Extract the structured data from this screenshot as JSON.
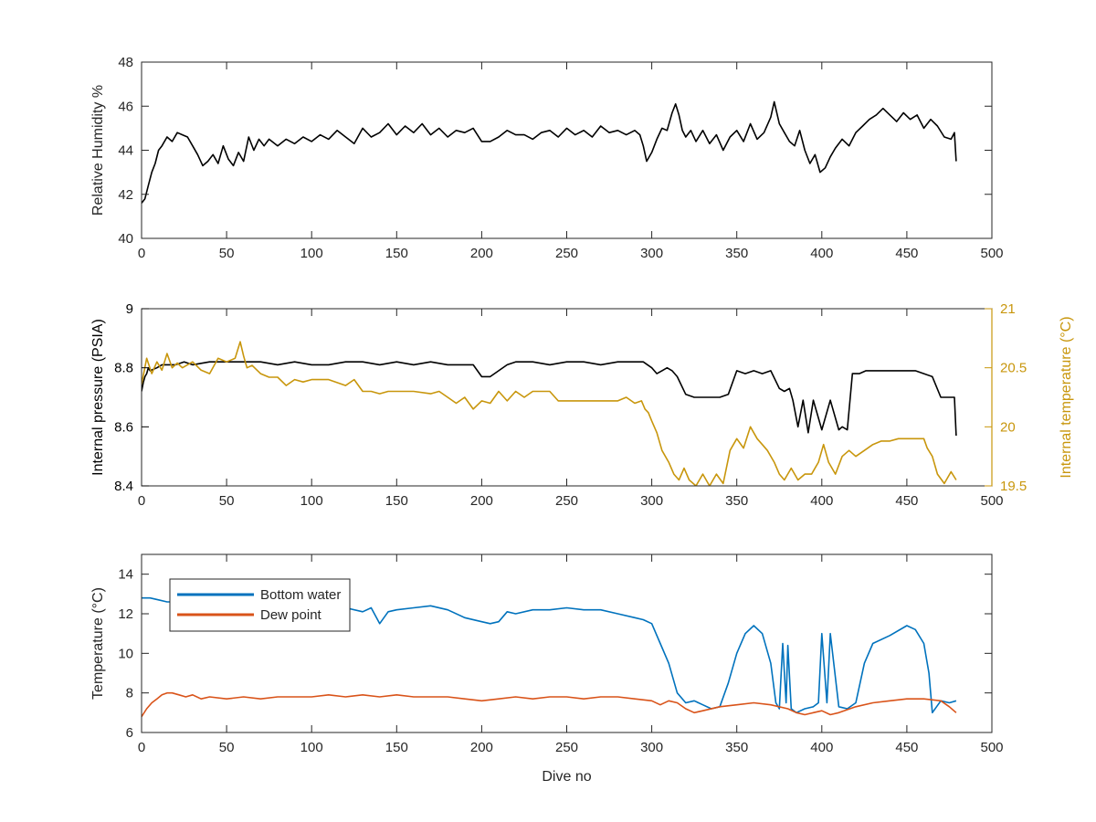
{
  "colors": {
    "black": "#000000",
    "axis": "#262626",
    "temperature": "#C8960C",
    "bottom_water": "#0072BD",
    "dew_point": "#D95319"
  },
  "chart_data": [
    {
      "type": "line",
      "xlabel": "",
      "ylabel": "Relative Humidity %",
      "xlim": [
        0,
        500
      ],
      "ylim": [
        40,
        48
      ],
      "xticks": [
        "0",
        "50",
        "100",
        "150",
        "200",
        "250",
        "300",
        "350",
        "400",
        "450",
        "500"
      ],
      "yticks": [
        "40",
        "42",
        "44",
        "46",
        "48"
      ],
      "grid": false,
      "series": [
        {
          "name": "",
          "color": "#000000",
          "x": [
            0,
            2,
            4,
            6,
            8,
            10,
            12,
            15,
            18,
            21,
            24,
            27,
            30,
            33,
            36,
            39,
            42,
            45,
            48,
            51,
            54,
            57,
            60,
            63,
            66,
            69,
            72,
            75,
            80,
            85,
            90,
            95,
            100,
            105,
            110,
            115,
            120,
            125,
            130,
            135,
            140,
            145,
            150,
            155,
            160,
            165,
            170,
            175,
            180,
            185,
            190,
            195,
            200,
            205,
            210,
            215,
            220,
            225,
            230,
            235,
            240,
            245,
            250,
            255,
            260,
            265,
            270,
            275,
            280,
            285,
            290,
            293,
            295,
            297,
            300,
            303,
            306,
            309,
            312,
            314,
            316,
            318,
            320,
            323,
            326,
            330,
            334,
            338,
            342,
            346,
            350,
            354,
            358,
            362,
            366,
            370,
            372,
            375,
            378,
            381,
            384,
            387,
            390,
            393,
            396,
            399,
            402,
            405,
            408,
            412,
            416,
            420,
            424,
            428,
            432,
            436,
            440,
            444,
            448,
            452,
            456,
            460,
            464,
            468,
            472,
            476,
            478,
            479
          ],
          "y": [
            41.6,
            41.8,
            42.4,
            43.0,
            43.4,
            44.0,
            44.2,
            44.6,
            44.4,
            44.8,
            44.7,
            44.6,
            44.2,
            43.8,
            43.3,
            43.5,
            43.8,
            43.4,
            44.2,
            43.6,
            43.3,
            43.9,
            43.5,
            44.6,
            44.0,
            44.5,
            44.2,
            44.5,
            44.2,
            44.5,
            44.3,
            44.6,
            44.4,
            44.7,
            44.5,
            44.9,
            44.6,
            44.3,
            45.0,
            44.6,
            44.8,
            45.2,
            44.7,
            45.1,
            44.8,
            45.2,
            44.7,
            45.0,
            44.6,
            44.9,
            44.8,
            45.0,
            44.4,
            44.4,
            44.6,
            44.9,
            44.7,
            44.7,
            44.5,
            44.8,
            44.9,
            44.6,
            45.0,
            44.7,
            44.9,
            44.6,
            45.1,
            44.8,
            44.9,
            44.7,
            44.9,
            44.7,
            44.2,
            43.5,
            43.9,
            44.5,
            45.0,
            44.9,
            45.7,
            46.1,
            45.6,
            44.9,
            44.6,
            44.9,
            44.4,
            44.9,
            44.3,
            44.7,
            44.0,
            44.6,
            44.9,
            44.4,
            45.2,
            44.5,
            44.8,
            45.5,
            46.2,
            45.2,
            44.8,
            44.4,
            44.2,
            44.9,
            44.0,
            43.4,
            43.8,
            43.0,
            43.2,
            43.7,
            44.1,
            44.5,
            44.2,
            44.8,
            45.1,
            45.4,
            45.6,
            45.9,
            45.6,
            45.3,
            45.7,
            45.4,
            45.6,
            45.0,
            45.4,
            45.1,
            44.6,
            44.5,
            44.8,
            43.5
          ]
        }
      ]
    },
    {
      "type": "line",
      "xlabel": "",
      "ylabel": "Internal pressure (PSIA)",
      "ylabel_right": "Internal temperature (°C)",
      "xlim": [
        0,
        500
      ],
      "ylim": [
        8.4,
        9
      ],
      "ylim_right": [
        19.5,
        21
      ],
      "xticks": [
        "0",
        "50",
        "100",
        "150",
        "200",
        "250",
        "300",
        "350",
        "400",
        "450",
        "500"
      ],
      "yticks": [
        "8.4",
        "8.6",
        "8.8",
        "9"
      ],
      "yticks_right": [
        "19.5",
        "20",
        "20.5",
        "21"
      ],
      "grid": false,
      "series": [
        {
          "name": "",
          "axis": "left",
          "color": "#000000",
          "x": [
            0,
            1,
            2,
            3,
            4,
            5,
            9,
            12,
            15,
            20,
            25,
            30,
            40,
            50,
            60,
            70,
            80,
            90,
            100,
            110,
            120,
            130,
            140,
            150,
            160,
            170,
            180,
            190,
            195,
            200,
            205,
            210,
            215,
            220,
            230,
            240,
            250,
            260,
            270,
            280,
            290,
            295,
            300,
            303,
            306,
            309,
            312,
            315,
            320,
            325,
            330,
            335,
            340,
            345,
            350,
            355,
            360,
            365,
            370,
            375,
            378,
            381,
            383,
            386,
            389,
            392,
            395,
            400,
            405,
            410,
            412,
            415,
            418,
            422,
            426,
            430,
            440,
            450,
            455,
            460,
            465,
            470,
            475,
            478,
            479
          ],
          "y": [
            8.72,
            8.75,
            8.77,
            8.78,
            8.8,
            8.79,
            8.8,
            8.81,
            8.81,
            8.81,
            8.82,
            8.81,
            8.82,
            8.82,
            8.82,
            8.82,
            8.81,
            8.82,
            8.81,
            8.81,
            8.82,
            8.82,
            8.81,
            8.82,
            8.81,
            8.82,
            8.81,
            8.81,
            8.81,
            8.77,
            8.77,
            8.79,
            8.81,
            8.82,
            8.82,
            8.81,
            8.82,
            8.82,
            8.81,
            8.82,
            8.82,
            8.82,
            8.8,
            8.78,
            8.79,
            8.8,
            8.79,
            8.77,
            8.71,
            8.7,
            8.7,
            8.7,
            8.7,
            8.71,
            8.79,
            8.78,
            8.79,
            8.78,
            8.79,
            8.73,
            8.72,
            8.73,
            8.69,
            8.6,
            8.69,
            8.58,
            8.69,
            8.59,
            8.69,
            8.59,
            8.6,
            8.59,
            8.78,
            8.78,
            8.79,
            8.79,
            8.79,
            8.79,
            8.79,
            8.78,
            8.77,
            8.7,
            8.7,
            8.7,
            8.57
          ]
        },
        {
          "name": "",
          "axis": "right",
          "color": "#C8960C",
          "x": [
            0,
            3,
            6,
            9,
            12,
            15,
            18,
            21,
            24,
            30,
            35,
            40,
            45,
            50,
            55,
            58,
            60,
            62,
            65,
            70,
            75,
            80,
            85,
            90,
            95,
            100,
            110,
            120,
            125,
            130,
            135,
            140,
            145,
            150,
            160,
            170,
            175,
            180,
            185,
            190,
            195,
            200,
            205,
            210,
            215,
            220,
            225,
            230,
            235,
            240,
            245,
            250,
            260,
            270,
            280,
            285,
            290,
            294,
            296,
            298,
            300,
            303,
            306,
            310,
            313,
            316,
            319,
            322,
            326,
            330,
            334,
            338,
            342,
            346,
            350,
            354,
            358,
            362,
            365,
            368,
            372,
            375,
            378,
            382,
            386,
            390,
            394,
            398,
            401,
            404,
            408,
            412,
            416,
            420,
            425,
            430,
            435,
            440,
            445,
            450,
            455,
            460,
            462,
            465,
            468,
            472,
            476,
            479
          ],
          "y": [
            20.36,
            20.58,
            20.45,
            20.55,
            20.48,
            20.62,
            20.5,
            20.54,
            20.5,
            20.55,
            20.48,
            20.45,
            20.58,
            20.55,
            20.58,
            20.72,
            20.6,
            20.5,
            20.52,
            20.45,
            20.42,
            20.42,
            20.35,
            20.4,
            20.38,
            20.4,
            20.4,
            20.35,
            20.4,
            20.3,
            20.3,
            20.28,
            20.3,
            20.3,
            20.3,
            20.28,
            20.3,
            20.25,
            20.2,
            20.25,
            20.15,
            20.22,
            20.2,
            20.3,
            20.22,
            20.3,
            20.25,
            20.3,
            20.3,
            20.3,
            20.22,
            20.22,
            20.22,
            20.22,
            20.22,
            20.25,
            20.2,
            20.22,
            20.15,
            20.12,
            20.05,
            19.95,
            19.8,
            19.7,
            19.6,
            19.55,
            19.65,
            19.55,
            19.5,
            19.6,
            19.5,
            19.6,
            19.52,
            19.8,
            19.9,
            19.82,
            20.0,
            19.9,
            19.85,
            19.8,
            19.7,
            19.6,
            19.55,
            19.65,
            19.55,
            19.6,
            19.6,
            19.7,
            19.85,
            19.7,
            19.6,
            19.75,
            19.8,
            19.75,
            19.8,
            19.85,
            19.88,
            19.88,
            19.9,
            19.9,
            19.9,
            19.9,
            19.82,
            19.75,
            19.6,
            19.52,
            19.62,
            19.55
          ]
        }
      ]
    },
    {
      "type": "line",
      "xlabel": "Dive no",
      "ylabel": "Temperature (°C)",
      "xlim": [
        0,
        500
      ],
      "ylim": [
        6,
        15
      ],
      "xticks": [
        "0",
        "50",
        "100",
        "150",
        "200",
        "250",
        "300",
        "350",
        "400",
        "450",
        "500"
      ],
      "yticks": [
        "6",
        "8",
        "10",
        "12",
        "14"
      ],
      "grid": false,
      "legend_position": "top-left",
      "series": [
        {
          "name": "Bottom water",
          "color": "#0072BD",
          "x": [
            0,
            5,
            10,
            15,
            20,
            30,
            40,
            50,
            60,
            70,
            80,
            90,
            100,
            110,
            120,
            130,
            135,
            140,
            145,
            150,
            160,
            170,
            180,
            190,
            200,
            205,
            210,
            215,
            220,
            230,
            240,
            250,
            260,
            270,
            280,
            290,
            295,
            300,
            305,
            310,
            315,
            320,
            325,
            330,
            335,
            340,
            345,
            350,
            355,
            360,
            365,
            370,
            373,
            375,
            377,
            379,
            380,
            382,
            385,
            390,
            395,
            398,
            400,
            403,
            405,
            410,
            415,
            420,
            425,
            430,
            440,
            450,
            455,
            460,
            463,
            465,
            470,
            475,
            479
          ],
          "y": [
            12.8,
            12.8,
            12.7,
            12.6,
            12.6,
            12.7,
            12.6,
            12.6,
            12.6,
            12.5,
            12.6,
            12.5,
            12.5,
            12.4,
            12.3,
            12.1,
            12.3,
            11.5,
            12.1,
            12.2,
            12.3,
            12.4,
            12.2,
            11.8,
            11.6,
            11.5,
            11.6,
            12.1,
            12.0,
            12.2,
            12.2,
            12.3,
            12.2,
            12.2,
            12.0,
            11.8,
            11.7,
            11.5,
            10.5,
            9.5,
            8.0,
            7.5,
            7.6,
            7.4,
            7.2,
            7.3,
            8.5,
            10.0,
            11.0,
            11.4,
            11.0,
            9.5,
            7.5,
            7.2,
            10.5,
            7.5,
            10.4,
            7.2,
            7.0,
            7.2,
            7.3,
            7.5,
            11.0,
            7.5,
            11.0,
            7.3,
            7.2,
            7.5,
            9.5,
            10.5,
            10.9,
            11.4,
            11.2,
            10.5,
            9.0,
            7.0,
            7.6,
            7.5,
            7.6
          ]
        },
        {
          "name": "Dew point",
          "color": "#D95319",
          "x": [
            0,
            3,
            6,
            9,
            12,
            15,
            18,
            22,
            26,
            30,
            35,
            40,
            50,
            60,
            70,
            80,
            90,
            100,
            110,
            120,
            130,
            140,
            150,
            160,
            170,
            180,
            190,
            200,
            210,
            220,
            230,
            240,
            250,
            260,
            270,
            280,
            290,
            300,
            305,
            310,
            315,
            320,
            325,
            330,
            340,
            350,
            360,
            370,
            380,
            385,
            390,
            395,
            400,
            405,
            410,
            420,
            430,
            440,
            450,
            460,
            470,
            475,
            479
          ],
          "y": [
            6.8,
            7.2,
            7.5,
            7.7,
            7.9,
            8.0,
            8.0,
            7.9,
            7.8,
            7.9,
            7.7,
            7.8,
            7.7,
            7.8,
            7.7,
            7.8,
            7.8,
            7.8,
            7.9,
            7.8,
            7.9,
            7.8,
            7.9,
            7.8,
            7.8,
            7.8,
            7.7,
            7.6,
            7.7,
            7.8,
            7.7,
            7.8,
            7.8,
            7.7,
            7.8,
            7.8,
            7.7,
            7.6,
            7.4,
            7.6,
            7.5,
            7.2,
            7.0,
            7.1,
            7.3,
            7.4,
            7.5,
            7.4,
            7.2,
            7.0,
            6.9,
            7.0,
            7.1,
            6.9,
            7.0,
            7.3,
            7.5,
            7.6,
            7.7,
            7.7,
            7.6,
            7.3,
            7.0
          ]
        }
      ]
    }
  ]
}
